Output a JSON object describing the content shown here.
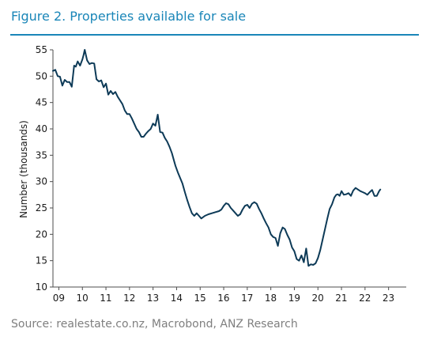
{
  "figure": {
    "title": "Figure 2.  Properties available for sale",
    "source": "Source: realestate.co.nz, Macrobond, ANZ Research"
  },
  "colors": {
    "accent": "#1a86b8",
    "line": "#0d3a57",
    "axis": "#4d4d4d",
    "text": "#7f7f7f"
  },
  "chart_data": {
    "type": "line",
    "title": "",
    "xlabel": "",
    "ylabel": "Number (thousands)",
    "ylim": [
      10,
      55
    ],
    "xlim": [
      2008.75,
      2023.75
    ],
    "yticks": [
      10,
      15,
      20,
      25,
      30,
      35,
      40,
      45,
      50,
      55
    ],
    "xtick_labels": [
      "09",
      "10",
      "11",
      "12",
      "13",
      "14",
      "15",
      "16",
      "17",
      "18",
      "19",
      "20",
      "21",
      "22",
      "23"
    ],
    "grid": false,
    "legend": "none",
    "series": [
      {
        "x": [
          2008.75,
          2008.85,
          2008.95,
          2009.05,
          2009.15,
          2009.25,
          2009.35,
          2009.45,
          2009.55,
          2009.65,
          2009.72,
          2009.8,
          2009.9,
          2010.0,
          2010.05,
          2010.1,
          2010.2,
          2010.3,
          2010.4,
          2010.5,
          2010.6,
          2010.7,
          2010.8,
          2010.9,
          2011.0,
          2011.1,
          2011.2,
          2011.3,
          2011.4,
          2011.5,
          2011.6,
          2011.7,
          2011.8,
          2011.9,
          2012.0,
          2012.1,
          2012.2,
          2012.3,
          2012.4,
          2012.5,
          2012.6,
          2012.7,
          2012.8,
          2012.9,
          2013.0,
          2013.1,
          2013.2,
          2013.3,
          2013.4,
          2013.5,
          2013.6,
          2013.7,
          2013.8,
          2013.88,
          2013.95,
          2014.05,
          2014.15,
          2014.25,
          2014.35,
          2014.45,
          2014.55,
          2014.65,
          2014.75,
          2014.85,
          2014.95,
          2015.05,
          2015.2,
          2015.35,
          2015.5,
          2015.65,
          2015.8,
          2015.9,
          2016.0,
          2016.1,
          2016.2,
          2016.3,
          2016.4,
          2016.5,
          2016.6,
          2016.7,
          2016.8,
          2016.9,
          2017.0,
          2017.1,
          2017.2,
          2017.3,
          2017.4,
          2017.5,
          2017.6,
          2017.7,
          2017.8,
          2017.9,
          2018.0,
          2018.1,
          2018.2,
          2018.3,
          2018.4,
          2018.5,
          2018.6,
          2018.7,
          2018.8,
          2018.9,
          2019.0,
          2019.1,
          2019.2,
          2019.3,
          2019.4,
          2019.5,
          2019.6,
          2019.7,
          2019.8,
          2019.9,
          2020.0,
          2020.1,
          2020.2,
          2020.3,
          2020.4,
          2020.5,
          2020.6,
          2020.7,
          2020.78,
          2020.85,
          2020.92,
          2021.0,
          2021.1,
          2021.2,
          2021.3,
          2021.4,
          2021.5,
          2021.6,
          2021.7,
          2021.8,
          2021.9,
          2022.0,
          2022.1,
          2022.2,
          2022.3,
          2022.4,
          2022.5,
          2022.6,
          2022.65
        ],
        "y": [
          51.0,
          51.2,
          50.0,
          49.9,
          48.2,
          49.3,
          48.9,
          48.9,
          48.0,
          52.0,
          51.8,
          52.8,
          52.0,
          53.2,
          54.0,
          55.0,
          53.0,
          52.3,
          52.5,
          52.4,
          49.4,
          49.0,
          49.2,
          47.9,
          48.6,
          46.5,
          47.2,
          46.6,
          47.0,
          46.1,
          45.4,
          44.7,
          43.5,
          42.8,
          42.8,
          42.0,
          41.0,
          40.0,
          39.4,
          38.5,
          38.5,
          39.1,
          39.6,
          40.0,
          41.0,
          40.6,
          42.7,
          39.4,
          39.3,
          38.3,
          37.6,
          36.6,
          35.4,
          34.1,
          33.0,
          31.8,
          30.7,
          29.6,
          28.0,
          26.5,
          25.2,
          24.0,
          23.5,
          24.0,
          23.5,
          23.0,
          23.5,
          23.8,
          24.0,
          24.2,
          24.4,
          24.7,
          25.4,
          25.9,
          25.7,
          25.0,
          24.5,
          24.0,
          23.5,
          23.8,
          24.7,
          25.4,
          25.6,
          25.0,
          25.8,
          26.1,
          25.8,
          24.8,
          24.0,
          23.0,
          22.1,
          21.3,
          20.0,
          19.5,
          19.3,
          17.8,
          20.2,
          21.3,
          21.0,
          19.9,
          19.0,
          17.5,
          16.8,
          15.3,
          15.0,
          16.0,
          14.7,
          17.3,
          14.0,
          14.3,
          14.2,
          14.5,
          15.5,
          17.0,
          19.0,
          21.0,
          23.0,
          24.8,
          25.7,
          27.0,
          27.5,
          27.6,
          27.3,
          28.2,
          27.5,
          27.6,
          27.8,
          27.3,
          28.3,
          28.8,
          28.5,
          28.2,
          28.0,
          27.8,
          27.5,
          28.0,
          28.4,
          27.3,
          27.3,
          28.2,
          28.5
        ],
        "_note": ""
      }
    ]
  }
}
